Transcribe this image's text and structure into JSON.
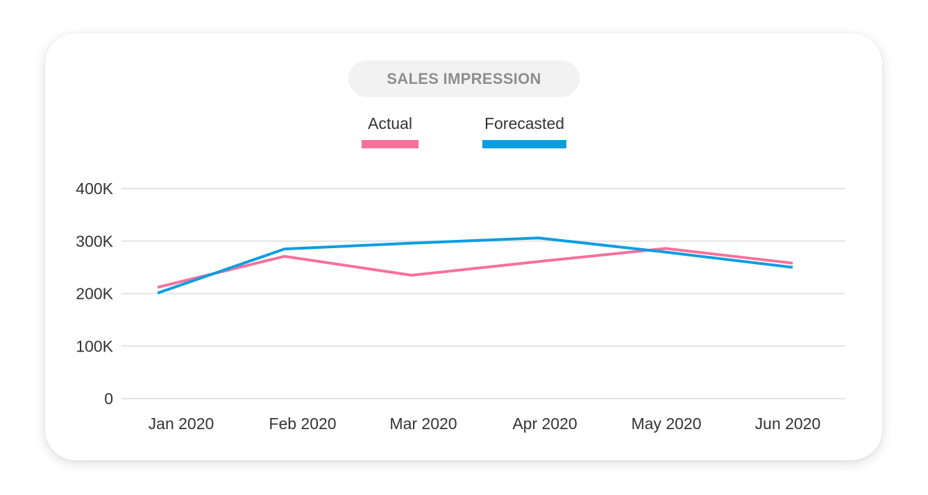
{
  "chart_data": {
    "type": "line",
    "title": "SALES IMPRESSION",
    "categories": [
      "Jan 2020",
      "Feb 2020",
      "Mar 2020",
      "Apr 2020",
      "May 2020",
      "Jun 2020"
    ],
    "series": [
      {
        "name": "Actual",
        "color": "#f7709c",
        "values": [
          212000,
          271000,
          235000,
          261000,
          286000,
          258000
        ]
      },
      {
        "name": "Forecasted",
        "color": "#0a9ee0",
        "values": [
          201000,
          285000,
          296000,
          306000,
          279000,
          250000
        ]
      }
    ],
    "ylim": [
      0,
      400000
    ],
    "yticks": [
      0,
      100000,
      200000,
      300000,
      400000
    ],
    "ytick_labels": [
      "0",
      "100K",
      "200K",
      "300K",
      "400K"
    ],
    "xlabel": "",
    "ylabel": "",
    "grid": true,
    "legend_position": "top-center"
  }
}
